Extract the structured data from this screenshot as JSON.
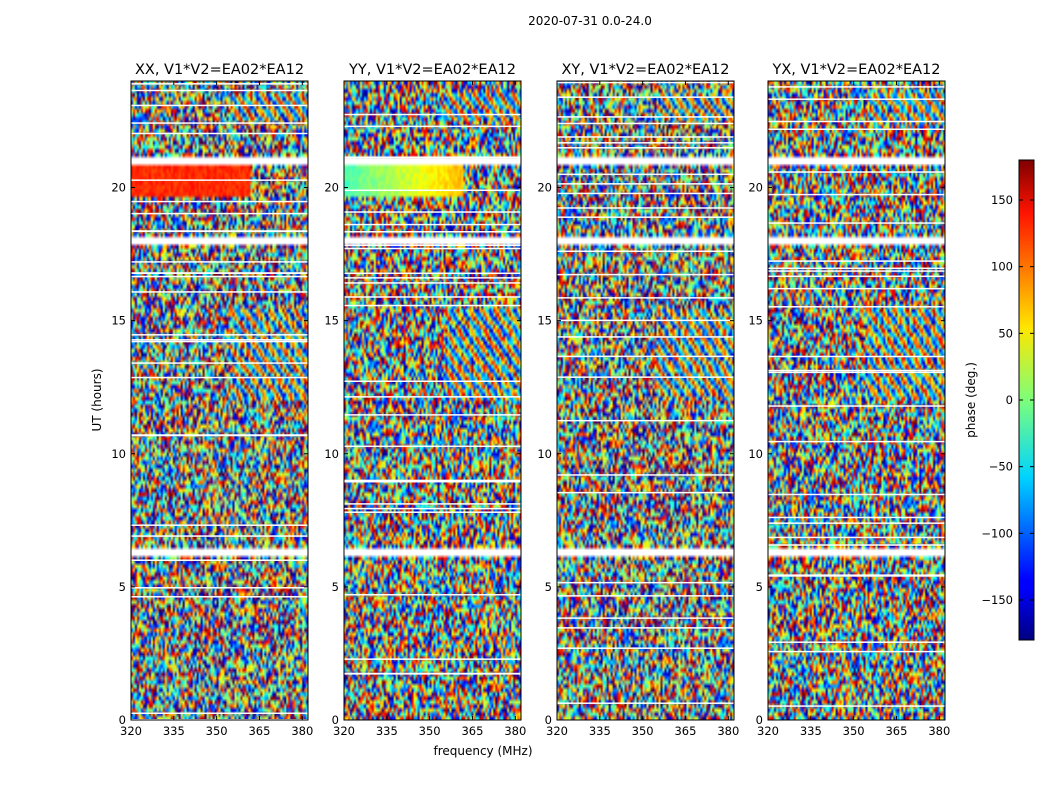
{
  "figure": {
    "suptitle": "2020-07-31 0.0-24.0"
  },
  "chart_data": {
    "type": "heatmap",
    "xlabel": "frequency (MHz)",
    "ylabel": "UT (hours)",
    "xlim": [
      320,
      382
    ],
    "ylim": [
      0,
      24
    ],
    "xticks": [
      320,
      335,
      350,
      365,
      380
    ],
    "yticks": [
      0,
      5,
      10,
      15,
      20
    ],
    "panels": [
      {
        "title": "XX, V1*V2=EA02*EA12",
        "polarization": "XX"
      },
      {
        "title": "YY, V1*V2=EA02*EA12",
        "polarization": "YY"
      },
      {
        "title": "XY, V1*V2=EA02*EA12",
        "polarization": "XY"
      },
      {
        "title": "YX, V1*V2=EA02*EA12",
        "polarization": "YX"
      }
    ],
    "colorbar": {
      "label": "phase (deg.)",
      "vmin": -180,
      "vmax": 180,
      "ticks": [
        -150,
        -100,
        -50,
        0,
        50,
        100,
        150
      ],
      "colormap": "jet"
    },
    "flagged_time_ranges_hours": [
      [
        6.1,
        6.5
      ],
      [
        17.9,
        18.2
      ],
      [
        20.9,
        21.1
      ],
      [
        19.6,
        19.7
      ],
      [
        11.5,
        11.6
      ]
    ],
    "coherent_phase_blocks": [
      {
        "panel": "XX",
        "t_start": 19.6,
        "t_end": 20.9,
        "f_start": 320,
        "f_end": 362,
        "phase_deg": 120
      },
      {
        "panel": "YY",
        "t_start": 19.6,
        "t_end": 20.9,
        "f_start": 320,
        "f_end": 362,
        "phase_deg": 20
      }
    ]
  }
}
